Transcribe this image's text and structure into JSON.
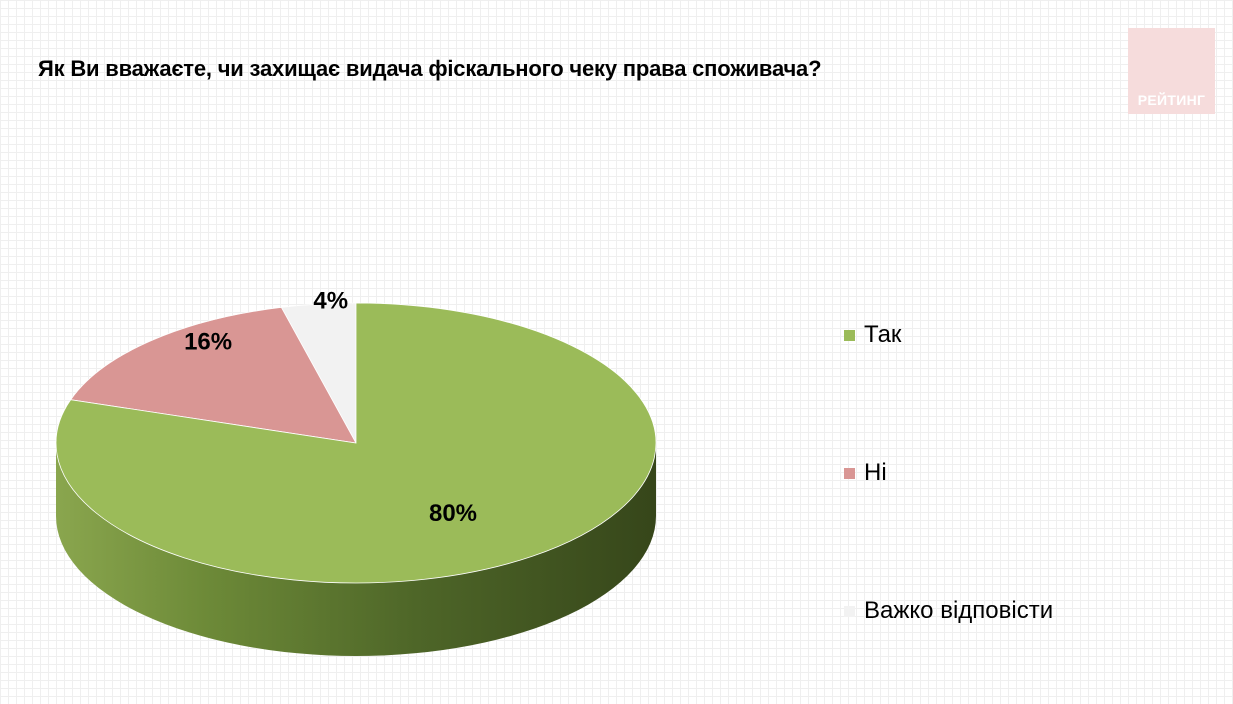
{
  "title": "Як Ви вважаєте, чи захищає видача фіскального чеку права споживача?",
  "logo": {
    "text": "РЕЙТИНГ",
    "color": "#f6dcdc"
  },
  "chart_data": {
    "type": "pie",
    "style": "3d",
    "categories": [
      "Так",
      "Ні",
      "Важко відповісти"
    ],
    "values": [
      80,
      16,
      4
    ],
    "data_labels": [
      "80%",
      "16%",
      "4%"
    ],
    "colors": [
      "#9bbb59",
      "#d99694",
      "#f2f2f2"
    ],
    "side_colors": [
      "#4a5f27",
      "#8c5553",
      "#b0b0b0"
    ],
    "legend_position": "right",
    "grid": false
  }
}
